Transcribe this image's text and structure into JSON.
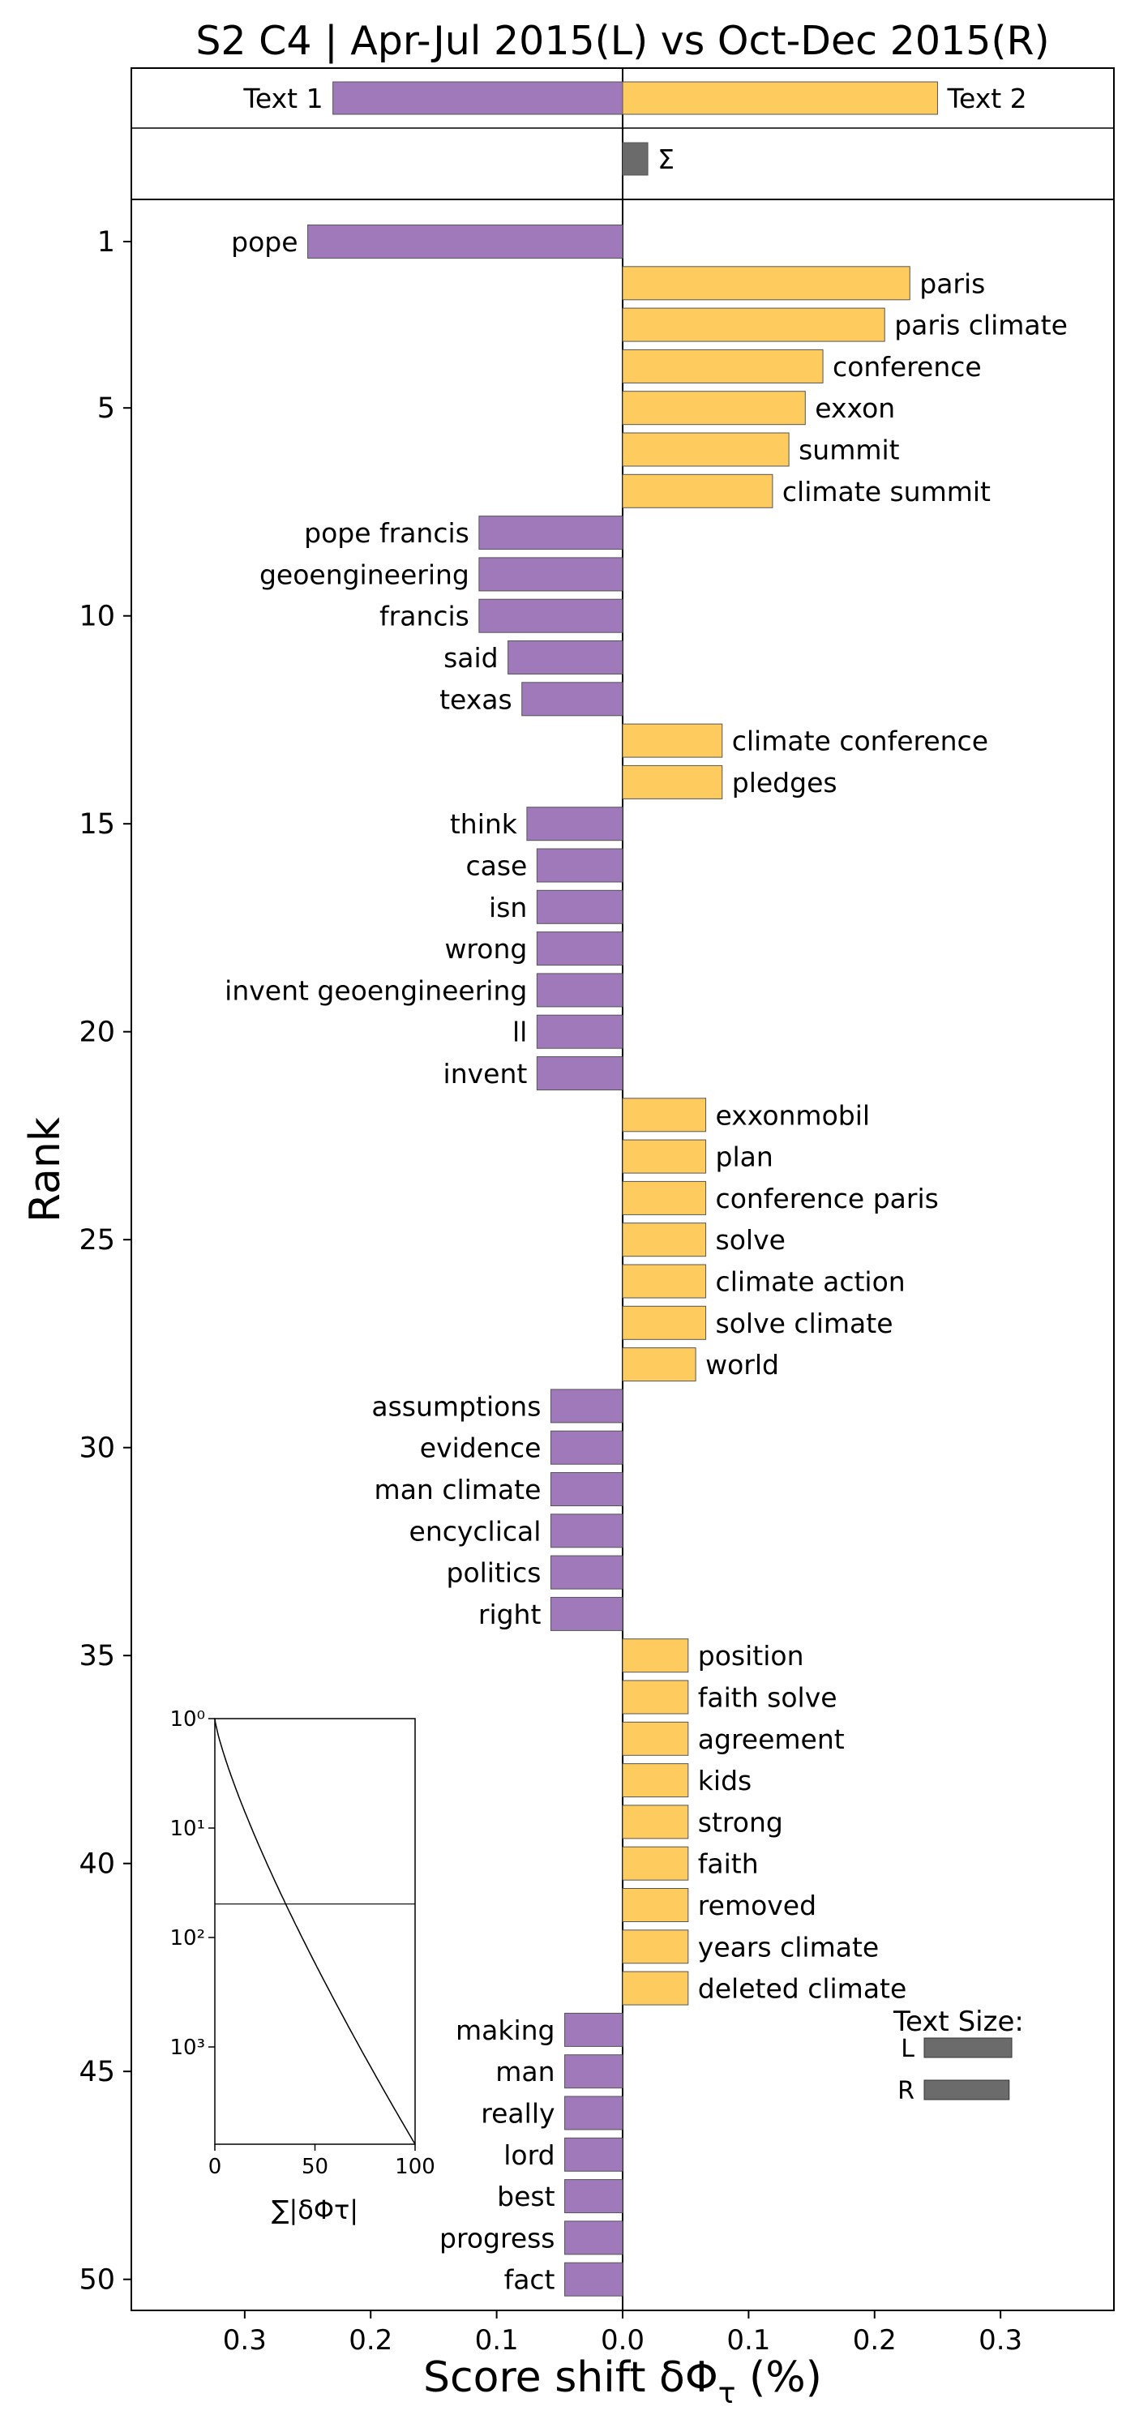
{
  "chart_data": {
    "type": "bar",
    "title": "S2 C4 | Apr-Jul 2015(L) vs Oct-Dec 2015(R)",
    "xlabel": "Score shift δΦ",
    "xlabel_sub": "τ",
    "xlabel_unit": " (%)",
    "ylabel": "Rank",
    "xlim": [
      -0.39,
      0.39
    ],
    "x_ticks": [
      -0.3,
      -0.2,
      -0.1,
      0.0,
      0.1,
      0.2,
      0.3
    ],
    "x_tick_labels": [
      "0.3",
      "0.2",
      "0.1",
      "0.0",
      "0.1",
      "0.2",
      "0.3"
    ],
    "y_ticks": [
      1,
      5,
      10,
      15,
      20,
      25,
      30,
      35,
      40,
      45,
      50
    ],
    "colors": {
      "left": "#9f79b9",
      "right": "#fdcb5e",
      "sum": "#6b6b6b"
    },
    "summary": {
      "text1_label": "Text 1",
      "text1_value": -0.23,
      "text2_label": "Text 2",
      "text2_value": 0.25,
      "sum_label": "Σ",
      "sum_value": 0.02
    },
    "words": [
      {
        "rank": 1,
        "word": "pope",
        "value": -0.25
      },
      {
        "rank": 2,
        "word": "paris",
        "value": 0.228
      },
      {
        "rank": 3,
        "word": "paris climate",
        "value": 0.208
      },
      {
        "rank": 4,
        "word": "conference",
        "value": 0.159
      },
      {
        "rank": 5,
        "word": "exxon",
        "value": 0.145
      },
      {
        "rank": 6,
        "word": "summit",
        "value": 0.132
      },
      {
        "rank": 7,
        "word": "climate summit",
        "value": 0.119
      },
      {
        "rank": 8,
        "word": "pope francis",
        "value": -0.114
      },
      {
        "rank": 9,
        "word": "geoengineering",
        "value": -0.114
      },
      {
        "rank": 10,
        "word": "francis",
        "value": -0.114
      },
      {
        "rank": 11,
        "word": "said",
        "value": -0.091
      },
      {
        "rank": 12,
        "word": "texas",
        "value": -0.08
      },
      {
        "rank": 13,
        "word": "climate conference",
        "value": 0.079
      },
      {
        "rank": 14,
        "word": "pledges",
        "value": 0.079
      },
      {
        "rank": 15,
        "word": "think",
        "value": -0.076
      },
      {
        "rank": 16,
        "word": "case",
        "value": -0.068
      },
      {
        "rank": 17,
        "word": "isn",
        "value": -0.068
      },
      {
        "rank": 18,
        "word": "wrong",
        "value": -0.068
      },
      {
        "rank": 19,
        "word": "invent geoengineering",
        "value": -0.068
      },
      {
        "rank": 20,
        "word": "ll",
        "value": -0.068
      },
      {
        "rank": 21,
        "word": "invent",
        "value": -0.068
      },
      {
        "rank": 22,
        "word": "exxonmobil",
        "value": 0.066
      },
      {
        "rank": 23,
        "word": "plan",
        "value": 0.066
      },
      {
        "rank": 24,
        "word": "conference paris",
        "value": 0.066
      },
      {
        "rank": 25,
        "word": "solve",
        "value": 0.066
      },
      {
        "rank": 26,
        "word": "climate action",
        "value": 0.066
      },
      {
        "rank": 27,
        "word": "solve climate",
        "value": 0.066
      },
      {
        "rank": 28,
        "word": "world",
        "value": 0.058
      },
      {
        "rank": 29,
        "word": "assumptions",
        "value": -0.057
      },
      {
        "rank": 30,
        "word": "evidence",
        "value": -0.057
      },
      {
        "rank": 31,
        "word": "man climate",
        "value": -0.057
      },
      {
        "rank": 32,
        "word": "encyclical",
        "value": -0.057
      },
      {
        "rank": 33,
        "word": "politics",
        "value": -0.057
      },
      {
        "rank": 34,
        "word": "right",
        "value": -0.057
      },
      {
        "rank": 35,
        "word": "position",
        "value": 0.052
      },
      {
        "rank": 36,
        "word": "faith solve",
        "value": 0.052
      },
      {
        "rank": 37,
        "word": "agreement",
        "value": 0.052
      },
      {
        "rank": 38,
        "word": "kids",
        "value": 0.052
      },
      {
        "rank": 39,
        "word": "strong",
        "value": 0.052
      },
      {
        "rank": 40,
        "word": "faith",
        "value": 0.052
      },
      {
        "rank": 41,
        "word": "removed",
        "value": 0.052
      },
      {
        "rank": 42,
        "word": "years climate",
        "value": 0.052
      },
      {
        "rank": 43,
        "word": "deleted climate",
        "value": 0.052
      },
      {
        "rank": 44,
        "word": "making",
        "value": -0.046
      },
      {
        "rank": 45,
        "word": "man",
        "value": -0.046
      },
      {
        "rank": 46,
        "word": "really",
        "value": -0.046
      },
      {
        "rank": 47,
        "word": "lord",
        "value": -0.046
      },
      {
        "rank": 48,
        "word": "best",
        "value": -0.046
      },
      {
        "rank": 49,
        "word": "progress",
        "value": -0.046
      },
      {
        "rank": 50,
        "word": "fact",
        "value": -0.046
      }
    ],
    "inset": {
      "xlabel": "∑|δΦτ|",
      "x_ticks": [
        0,
        50,
        100
      ],
      "y_tick_labels": [
        "10⁰",
        "10¹",
        "10²",
        "10³"
      ],
      "y_scale": "log",
      "reference_rank": 50
    },
    "text_size": {
      "title": "Text Size:",
      "left_label": "L",
      "left_value": 1.0,
      "right_label": "R",
      "right_value": 0.97
    }
  }
}
